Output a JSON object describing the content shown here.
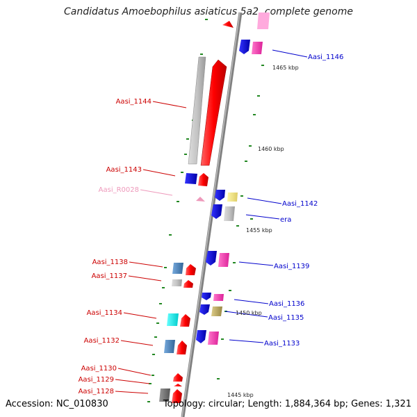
{
  "title": "Candidatus Amoebophilus asiaticus 5a2, complete genome",
  "footer": {
    "accession": "Accession: NC_010830",
    "topology": "Topology: circular; Length: 1,884,364 bp; Genes: 1,321"
  },
  "scale_labels": [
    "1465 kbp",
    "1460 kbp",
    "1455 kbp",
    "1450 kbp",
    "1445 kbp"
  ],
  "gene_labels_left": [
    "Aasi_1144",
    "Aasi_1143",
    "Aasi_R0028",
    "Aasi_1138",
    "Aasi_1137",
    "Aasi_1134",
    "Aasi_1132",
    "Aasi_1130",
    "Aasi_1129",
    "Aasi_1128"
  ],
  "gene_labels_right": [
    "Aasi_1146",
    "Aasi_1142",
    "era",
    "Aasi_1139",
    "Aasi_1136",
    "Aasi_1135",
    "Aasi_1133"
  ],
  "colors": {
    "forward_label": "#cc0000",
    "reverse_label": "#0000cc",
    "rna_label": "#ee99bb",
    "backbone": "#888888",
    "tick": "#228822"
  }
}
